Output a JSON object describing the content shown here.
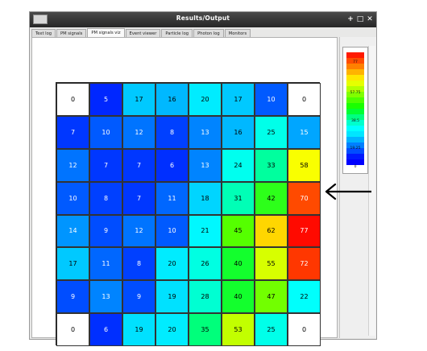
{
  "window": {
    "title": "Results/Output",
    "controls": [
      "+",
      "□",
      "✕"
    ]
  },
  "tabs": [
    {
      "label": "Text log",
      "active": false
    },
    {
      "label": "PM signals",
      "active": false
    },
    {
      "label": "PM signals viz",
      "active": true
    },
    {
      "label": "Event viewer",
      "active": false
    },
    {
      "label": "Particle log",
      "active": false
    },
    {
      "label": "Photon log",
      "active": false
    },
    {
      "label": "Monitors",
      "active": false
    }
  ],
  "grid": {
    "rows": [
      [
        0,
        5,
        17,
        16,
        20,
        17,
        10,
        0
      ],
      [
        7,
        10,
        12,
        8,
        13,
        16,
        25,
        15
      ],
      [
        12,
        7,
        7,
        6,
        13,
        24,
        33,
        58
      ],
      [
        10,
        8,
        7,
        11,
        18,
        31,
        42,
        70
      ],
      [
        14,
        9,
        12,
        10,
        21,
        45,
        62,
        77
      ],
      [
        17,
        11,
        8,
        20,
        26,
        40,
        55,
        72
      ],
      [
        9,
        13,
        9,
        19,
        28,
        40,
        47,
        22
      ],
      [
        0,
        6,
        19,
        20,
        35,
        53,
        25,
        0
      ]
    ]
  },
  "colorbar": {
    "labels": [
      "77",
      "57.75",
      "38.5",
      "19.25",
      "0"
    ],
    "colors": [
      "#ff1a00",
      "#ff4d00",
      "#ff8000",
      "#ffb300",
      "#ffe600",
      "#e6ff00",
      "#b3ff00",
      "#80ff00",
      "#4dff00",
      "#1aff00",
      "#00ff33",
      "#00ff80",
      "#00ffcc",
      "#00ffff",
      "#00e6ff",
      "#00b3ff",
      "#0080ff",
      "#004dff",
      "#001aff",
      "#0000ff"
    ]
  },
  "colors": {
    "arrow": "#000000",
    "titlebar": "#333333"
  }
}
